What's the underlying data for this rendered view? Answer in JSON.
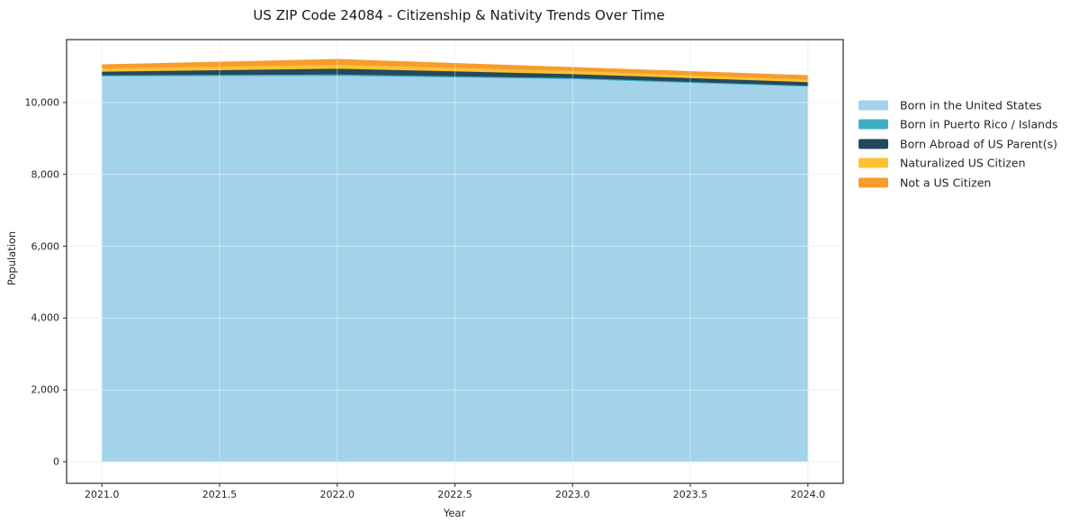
{
  "title": "US ZIP Code 24084 - Citizenship & Nativity Trends Over Time",
  "chart_data": {
    "type": "area",
    "stacked": true,
    "title": "US ZIP Code 24084 - Citizenship & Nativity Trends Over Time",
    "xlabel": "Year",
    "ylabel": "Population",
    "x": [
      2021,
      2022,
      2023,
      2024
    ],
    "series": [
      {
        "name": "Born in the United States",
        "color": "#a3d3ea",
        "values": [
          10740,
          10750,
          10660,
          10450
        ]
      },
      {
        "name": "Born in Puerto Rico / Islands",
        "color": "#3fadc4",
        "values": [
          25,
          40,
          30,
          25
        ]
      },
      {
        "name": "Born Abroad of US Parent(s)",
        "color": "#25495c",
        "values": [
          100,
          160,
          110,
          100
        ]
      },
      {
        "name": "Naturalized US Citizen",
        "color": "#fcc232",
        "values": [
          90,
          110,
          85,
          75
        ]
      },
      {
        "name": "Not a US Citizen",
        "color": "#f79c2d",
        "values": [
          95,
          140,
          90,
          100
        ]
      }
    ],
    "xlim": [
      2020.85,
      2024.15
    ],
    "ylim": [
      -600,
      11750
    ],
    "xticks": [
      2021.0,
      2021.5,
      2022.0,
      2022.5,
      2023.0,
      2023.5,
      2024.0
    ],
    "xtick_labels": [
      "2021.0",
      "2021.5",
      "2022.0",
      "2022.5",
      "2023.0",
      "2023.5",
      "2024.0"
    ],
    "yticks": [
      0,
      2000,
      4000,
      6000,
      8000,
      10000
    ],
    "ytick_labels": [
      "0",
      "2,000",
      "4,000",
      "6,000",
      "8,000",
      "10,000"
    ],
    "grid": true,
    "legend_position": "right-outside"
  },
  "colors": {
    "background": "#ffffff",
    "grid": "#e8e8e8",
    "grid_overlay": "rgba(255,255,255,0.45)",
    "spine": "#2b2b2b",
    "tick": "#2b2b2b",
    "text": "#262626"
  }
}
